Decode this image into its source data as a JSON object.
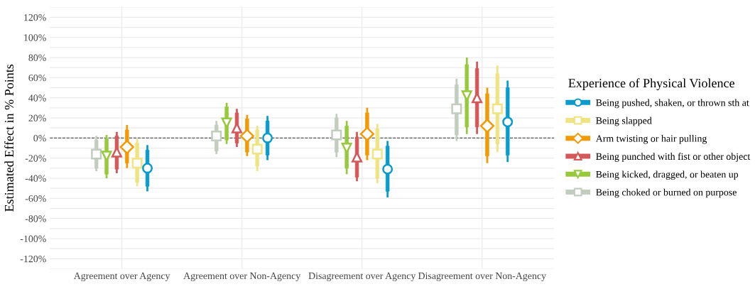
{
  "chart_data": {
    "type": "box",
    "ylabel": "Estimated Effect in % Points",
    "legend_title": "Experience of Physical Violence",
    "categories": [
      "Agreement over Agency",
      "Agreement over Non-Agency",
      "Disagreement over Agency",
      "Disagreement over Non-Agency"
    ],
    "series": [
      {
        "name": "Being pushed, shaken, or thrown sth at",
        "color": "#0a9bcc",
        "marker": "circle",
        "boxes": [
          {
            "low": -52,
            "q1": -48,
            "median": -30,
            "q3": -12,
            "high": -8
          },
          {
            "low": -21,
            "q1": -17,
            "median": 0,
            "q3": 17,
            "high": 21
          },
          {
            "low": -58,
            "q1": -53,
            "median": -31,
            "q3": -8,
            "high": -4
          },
          {
            "low": -23,
            "q1": -17,
            "median": 16,
            "q3": 50,
            "high": 56
          }
        ]
      },
      {
        "name": "Being slapped",
        "color": "#efe382",
        "marker": "square",
        "boxes": [
          {
            "low": -47,
            "q1": -44,
            "median": -25,
            "q3": -5,
            "high": -2
          },
          {
            "low": -32,
            "q1": -28,
            "median": -11,
            "q3": 8,
            "high": 11
          },
          {
            "low": -44,
            "q1": -40,
            "median": -16,
            "q3": 9,
            "high": 13
          },
          {
            "low": -13,
            "q1": -6,
            "median": 29,
            "q3": 64,
            "high": 71
          }
        ]
      },
      {
        "name": "Arm twisting or hair pulling",
        "color": "#f29a05",
        "marker": "diamond",
        "boxes": [
          {
            "low": -29,
            "q1": -25,
            "median": -9,
            "q3": 8,
            "high": 12
          },
          {
            "low": -17,
            "q1": -14,
            "median": 2,
            "q3": 19,
            "high": 22
          },
          {
            "low": -21,
            "q1": -17,
            "median": 4,
            "q3": 25,
            "high": 29
          },
          {
            "low": -24,
            "q1": -18,
            "median": 12,
            "q3": 44,
            "high": 49
          }
        ]
      },
      {
        "name": "Being punched with fist or other object",
        "color": "#d45859",
        "marker": "triangle",
        "boxes": [
          {
            "low": -34,
            "q1": -31,
            "median": -14,
            "q3": 2,
            "high": 5
          },
          {
            "low": -8,
            "q1": -5,
            "median": 10,
            "q3": 25,
            "high": 28
          },
          {
            "low": -42,
            "q1": -39,
            "median": -19,
            "q3": 1,
            "high": 5
          },
          {
            "low": 5,
            "q1": 11,
            "median": 40,
            "q3": 69,
            "high": 75
          }
        ]
      },
      {
        "name": "Being kicked, dragged, or beaten up",
        "color": "#98c93c",
        "marker": "triangle_down",
        "boxes": [
          {
            "low": -39,
            "q1": -36,
            "median": -18,
            "q3": -1,
            "high": 2
          },
          {
            "low": -5,
            "q1": -2,
            "median": 15,
            "q3": 31,
            "high": 34
          },
          {
            "low": -35,
            "q1": -30,
            "median": -10,
            "q3": 12,
            "high": 16
          },
          {
            "low": 5,
            "q1": 11,
            "median": 42,
            "q3": 73,
            "high": 79
          }
        ]
      },
      {
        "name": "Being choked or burned on purpose",
        "color": "#c2ccbf",
        "marker": "square",
        "boxes": [
          {
            "low": -32,
            "q1": -30,
            "median": -16,
            "q3": -2,
            "high": 1
          },
          {
            "low": -15,
            "q1": -13,
            "median": 2,
            "q3": 13,
            "high": 16
          },
          {
            "low": -18,
            "q1": -14,
            "median": 3,
            "q3": 20,
            "high": 23
          },
          {
            "low": -2,
            "q1": 3,
            "median": 29,
            "q3": 53,
            "high": 58
          }
        ]
      }
    ],
    "ylim": [
      -130,
      130
    ],
    "yticks": [
      {
        "value": -130,
        "label": null
      },
      {
        "value": -120,
        "label": "-120%"
      },
      {
        "value": -110,
        "label": null
      },
      {
        "value": -100,
        "label": "-100%"
      },
      {
        "value": -90,
        "label": null
      },
      {
        "value": -80,
        "label": "-80%"
      },
      {
        "value": -70,
        "label": null
      },
      {
        "value": -60,
        "label": "-60%"
      },
      {
        "value": -50,
        "label": null
      },
      {
        "value": -40,
        "label": "-40%"
      },
      {
        "value": -30,
        "label": null
      },
      {
        "value": -20,
        "label": "-20%"
      },
      {
        "value": -10,
        "label": null
      },
      {
        "value": 0,
        "label": "0%"
      },
      {
        "value": 10,
        "label": null
      },
      {
        "value": 20,
        "label": "20%"
      },
      {
        "value": 30,
        "label": null
      },
      {
        "value": 40,
        "label": "40%"
      },
      {
        "value": 50,
        "label": null
      },
      {
        "value": 60,
        "label": "60%"
      },
      {
        "value": 70,
        "label": null
      },
      {
        "value": 80,
        "label": "80%"
      },
      {
        "value": 90,
        "label": null
      },
      {
        "value": 100,
        "label": "100%"
      },
      {
        "value": 110,
        "label": null
      },
      {
        "value": 120,
        "label": "120%"
      },
      {
        "value": 130,
        "label": null
      }
    ],
    "ref_lines": [
      {
        "axis": "y",
        "value": 0,
        "color": "#555555",
        "line_style": "dashed"
      }
    ],
    "grid": true,
    "legend": "right"
  }
}
